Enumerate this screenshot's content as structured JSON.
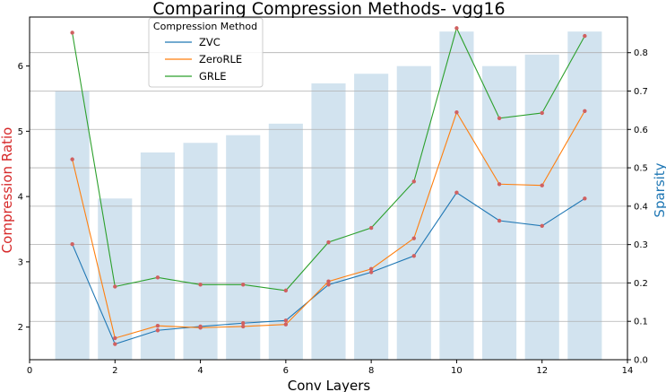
{
  "chart_data": {
    "type": "bar+line",
    "title": "Comparing Compression Methods- vgg16",
    "xlabel": "Conv Layers",
    "ylabel_left": "Compression Ratio",
    "ylabel_right": "Sparsity",
    "xlim": [
      0,
      14
    ],
    "ylim_left": [
      1.5,
      6.75
    ],
    "ylim_right": [
      0.0,
      0.8928
    ],
    "x_ticks": [
      0,
      2,
      4,
      6,
      8,
      10,
      12,
      14
    ],
    "y_ticks_left": [
      2,
      3,
      4,
      5,
      6
    ],
    "y_ticks_right": [
      0.0,
      0.1,
      0.2,
      0.3,
      0.4,
      0.5,
      0.6,
      0.7,
      0.8
    ],
    "grid": "horizontal-right-axis",
    "colors": {
      "bars": "#a6c8e0",
      "ZVC": "#1f77b4",
      "ZeroRLE": "#ff7f0e",
      "GRLE": "#2ca02c",
      "markers": "#d06060",
      "left_axis_label": "#d62728",
      "right_axis_label": "#1f77b4"
    },
    "legend": {
      "title": "Compression Method",
      "placement": "upper-center-left"
    },
    "x": [
      1,
      2,
      3,
      4,
      5,
      6,
      7,
      8,
      9,
      10,
      11,
      12,
      13
    ],
    "sparsity": [
      0.7,
      0.42,
      0.54,
      0.565,
      0.585,
      0.615,
      0.72,
      0.745,
      0.765,
      0.855,
      0.765,
      0.795,
      0.855
    ],
    "series": [
      {
        "name": "ZVC",
        "values": [
          3.27,
          1.74,
          1.95,
          2.01,
          2.06,
          2.1,
          2.65,
          2.84,
          3.09,
          4.06,
          3.63,
          3.55,
          3.97
        ]
      },
      {
        "name": "ZeroRLE",
        "values": [
          4.57,
          1.83,
          2.02,
          1.99,
          2.01,
          2.04,
          2.7,
          2.89,
          3.36,
          5.29,
          4.19,
          4.17,
          5.31
        ]
      },
      {
        "name": "GRLE",
        "values": [
          6.51,
          2.62,
          2.76,
          2.65,
          2.65,
          2.56,
          3.3,
          3.52,
          4.23,
          6.58,
          5.2,
          5.28,
          6.46
        ]
      }
    ]
  }
}
